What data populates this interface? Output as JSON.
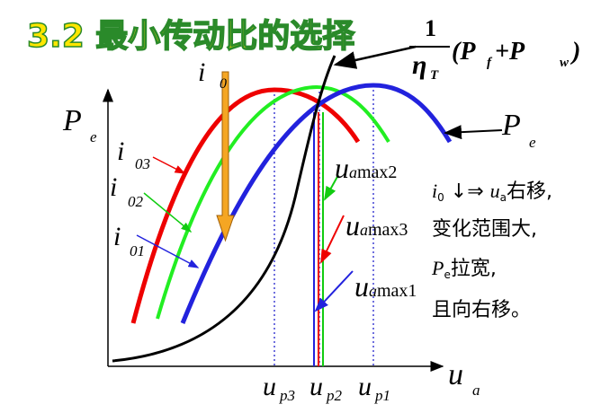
{
  "title": "3.2 最小传动比的选择",
  "formula": {
    "numerator": "1",
    "eta": "η",
    "eta_sub": "T",
    "open": "(P",
    "f_sub": "f",
    "plus": " +P",
    "w_sub": "w",
    "close": ")"
  },
  "i0_label": {
    "main": "i",
    "sub": "0"
  },
  "y_axis_label": {
    "main": "P",
    "sub": "e"
  },
  "curve_labels": [
    {
      "main": "i",
      "sub": "03"
    },
    {
      "main": "i",
      "sub": "02"
    },
    {
      "main": "i",
      "sub": "01"
    }
  ],
  "pe_curve_label": {
    "main": "P",
    "sub": "e"
  },
  "speed_labels": [
    {
      "main": "u",
      "sub": "a",
      "rest": "max2"
    },
    {
      "main": "u",
      "sub": "a",
      "rest": "max3"
    },
    {
      "main": "u",
      "sub": "a",
      "rest": "max1"
    }
  ],
  "notes": [
    {
      "a": "i",
      "a_sub": "0",
      "b": " ↓⇒ ",
      "c": "u",
      "c_sub": "a",
      "d": "右移,"
    },
    {
      "text": "变化范围大,"
    },
    {
      "a": "P",
      "a_sub": "e",
      "d": "拉宽,"
    },
    {
      "text": "且向右移。"
    }
  ],
  "x_labels": [
    {
      "main": "u",
      "sub": "p3"
    },
    {
      "main": "u",
      "sub": "p2"
    },
    {
      "main": "u",
      "sub": "p1"
    }
  ],
  "x_axis_label": {
    "main": "u",
    "sub": "a"
  }
}
